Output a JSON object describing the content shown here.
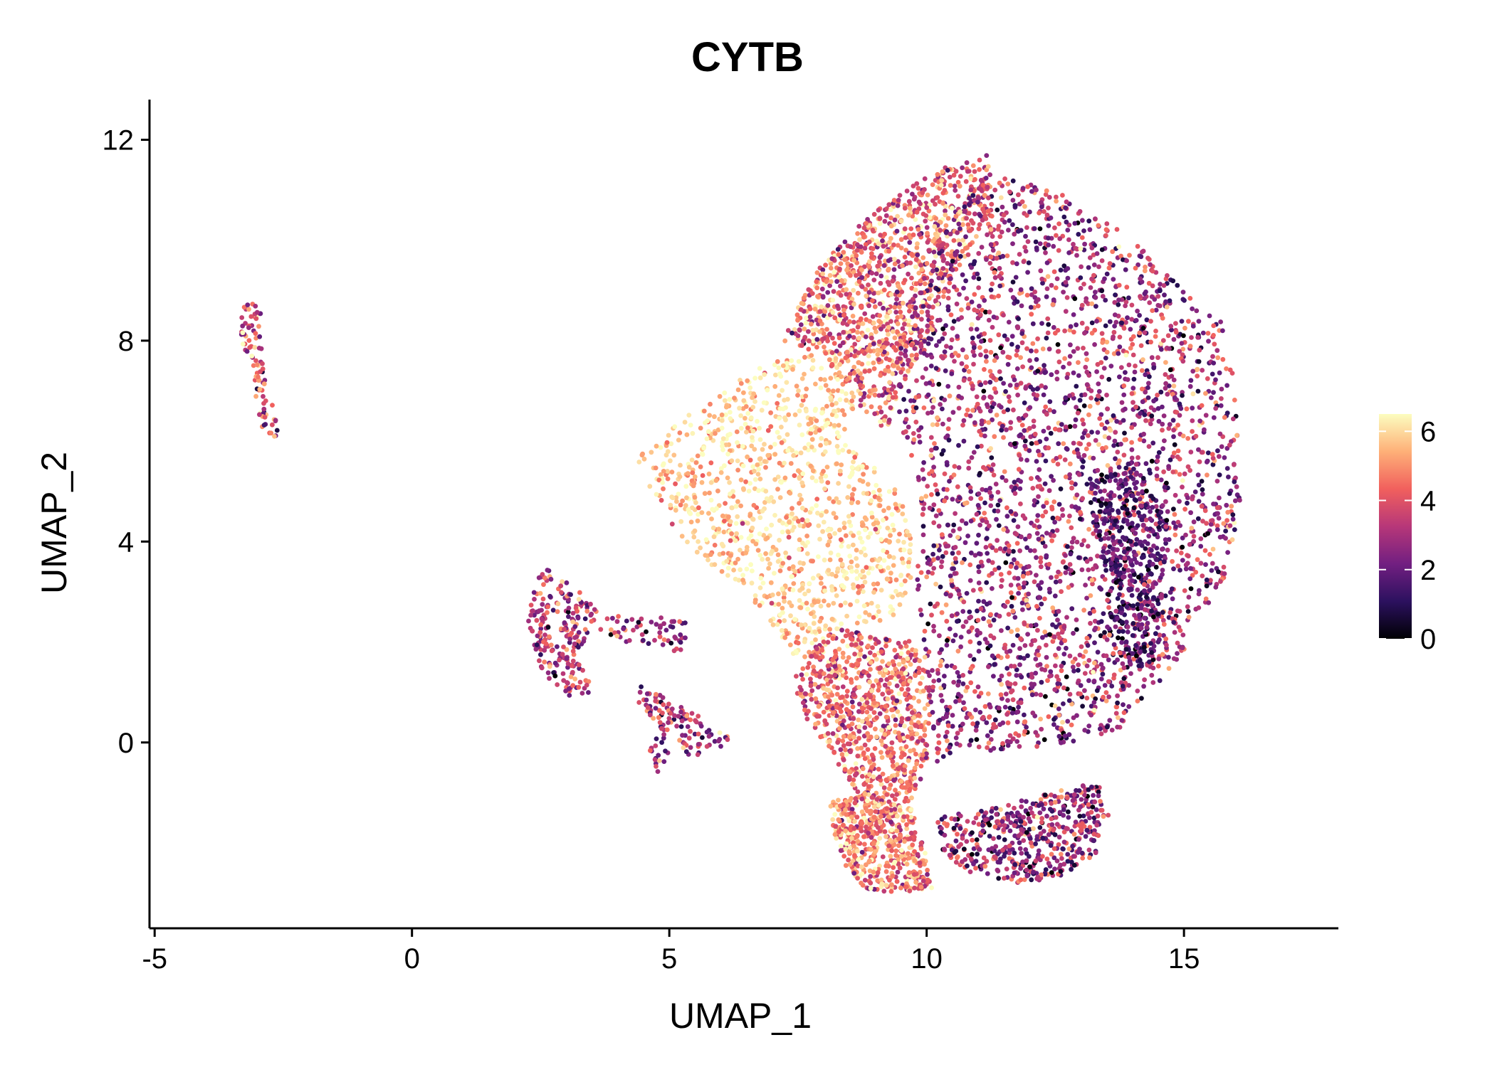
{
  "chart_data": {
    "type": "scatter",
    "title": "CYTB",
    "xlabel": "UMAP_1",
    "ylabel": "UMAP_2",
    "xlim": [
      -5.1,
      18
    ],
    "ylim": [
      -3.7,
      12.8
    ],
    "x_ticks": [
      -5,
      0,
      5,
      10,
      15
    ],
    "x_tick_labels": [
      "-5",
      "0",
      "5",
      "10",
      "15"
    ],
    "y_ticks": [
      0,
      4,
      8,
      12
    ],
    "y_tick_labels": [
      "0",
      "4",
      "8",
      "12"
    ],
    "grid": false,
    "legend": {
      "position": "right",
      "type": "colorbar",
      "min": 0,
      "max": 6.5,
      "ticks": [
        0,
        2,
        4,
        6
      ],
      "tick_labels": [
        "0",
        "2",
        "4",
        "6"
      ],
      "palette": [
        "#000004",
        "#2c115f",
        "#721f81",
        "#b73779",
        "#f1605d",
        "#feb078",
        "#fcfdbf"
      ]
    },
    "clusters": [
      {
        "name": "",
        "shape": "polygon",
        "poly": [
          [
            -3.35,
            8.7
          ],
          [
            -2.95,
            8.8
          ],
          [
            -2.9,
            7.6
          ],
          [
            -2.65,
            6.6
          ],
          [
            -2.6,
            6.05
          ],
          [
            -2.9,
            6.2
          ],
          [
            -3.1,
            7.2
          ],
          [
            -3.35,
            7.9
          ]
        ],
        "n": 90,
        "values": {
          "mean": 4.0,
          "sd": 1.5
        }
      },
      {
        "name": "",
        "shape": "polygon",
        "poly": [
          [
            2.2,
            2.9
          ],
          [
            2.6,
            3.5
          ],
          [
            3.3,
            3.0
          ],
          [
            3.6,
            2.6
          ],
          [
            3.3,
            1.8
          ],
          [
            3.5,
            1.0
          ],
          [
            3.1,
            0.9
          ],
          [
            2.6,
            1.3
          ],
          [
            2.3,
            2.0
          ]
        ],
        "n": 220,
        "values": {
          "mean": 3.3,
          "sd": 1.3
        }
      },
      {
        "name": "",
        "shape": "polygon",
        "poly": [
          [
            3.6,
            2.6
          ],
          [
            4.5,
            2.5
          ],
          [
            5.4,
            2.5
          ],
          [
            5.3,
            1.8
          ],
          [
            4.4,
            1.9
          ],
          [
            3.6,
            2.2
          ]
        ],
        "n": 60,
        "values": {
          "mean": 2.8,
          "sd": 1.3
        }
      },
      {
        "name": "",
        "shape": "polygon",
        "poly": [
          [
            4.4,
            1.2
          ],
          [
            5.3,
            0.7
          ],
          [
            6.2,
            0.1
          ],
          [
            6.0,
            -0.2
          ],
          [
            5.1,
            -0.3
          ],
          [
            4.8,
            -0.6
          ],
          [
            4.5,
            -0.4
          ],
          [
            4.8,
            0.3
          ],
          [
            4.3,
            0.8
          ]
        ],
        "n": 120,
        "values": {
          "mean": 3.0,
          "sd": 1.3
        }
      },
      {
        "name": "",
        "shape": "polygon",
        "poly": [
          [
            4.3,
            5.6
          ],
          [
            5.8,
            6.9
          ],
          [
            7.0,
            7.6
          ],
          [
            8.2,
            7.8
          ],
          [
            8.7,
            7.0
          ],
          [
            8.4,
            6.0
          ],
          [
            9.5,
            5.0
          ],
          [
            9.8,
            3.5
          ],
          [
            9.4,
            2.5
          ],
          [
            8.2,
            2.2
          ],
          [
            7.4,
            1.7
          ],
          [
            6.8,
            2.6
          ],
          [
            5.2,
            4.1
          ]
        ],
        "n": 1100,
        "values": {
          "mean": 5.8,
          "sd": 0.7
        }
      },
      {
        "name": "",
        "shape": "polygon",
        "poly": [
          [
            7.2,
            8.0
          ],
          [
            7.9,
            9.5
          ],
          [
            8.9,
            10.5
          ],
          [
            10.2,
            11.4
          ],
          [
            11.2,
            11.7
          ],
          [
            11.3,
            10.6
          ],
          [
            10.7,
            9.6
          ],
          [
            10.1,
            8.3
          ],
          [
            9.6,
            7.2
          ],
          [
            9.2,
            6.2
          ],
          [
            8.6,
            6.8
          ],
          [
            8.0,
            7.7
          ]
        ],
        "n": 1100,
        "values": {
          "mean": 4.4,
          "sd": 1.2
        }
      },
      {
        "name": "",
        "shape": "polygon",
        "poly": [
          [
            7.3,
            1.5
          ],
          [
            8.3,
            2.3
          ],
          [
            9.2,
            2.1
          ],
          [
            9.8,
            2.0
          ],
          [
            10.1,
            1.0
          ],
          [
            10.0,
            -0.6
          ],
          [
            9.7,
            -1.2
          ],
          [
            8.9,
            -1.5
          ],
          [
            8.6,
            -0.9
          ],
          [
            7.7,
            0.4
          ]
        ],
        "n": 800,
        "values": {
          "mean": 4.4,
          "sd": 1.0
        }
      },
      {
        "name": "",
        "shape": "polygon",
        "poly": [
          [
            8.1,
            -1.2
          ],
          [
            8.8,
            -1.0
          ],
          [
            9.7,
            -1.3
          ],
          [
            10.0,
            -2.3
          ],
          [
            10.1,
            -2.9
          ],
          [
            9.4,
            -3.0
          ],
          [
            8.8,
            -2.9
          ],
          [
            8.3,
            -2.3
          ]
        ],
        "n": 500,
        "values": {
          "mean": 4.8,
          "sd": 1.1
        }
      },
      {
        "name": "",
        "shape": "polygon",
        "poly": [
          [
            10.2,
            -1.5
          ],
          [
            11.3,
            -1.3
          ],
          [
            12.4,
            -1.0
          ],
          [
            13.3,
            -0.8
          ],
          [
            13.6,
            -1.3
          ],
          [
            13.3,
            -2.2
          ],
          [
            12.6,
            -2.7
          ],
          [
            11.8,
            -2.8
          ],
          [
            11.0,
            -2.7
          ],
          [
            10.3,
            -2.2
          ]
        ],
        "n": 500,
        "values": {
          "mean": 2.6,
          "sd": 1.4
        }
      },
      {
        "name": "",
        "shape": "polygon",
        "poly": [
          [
            9.4,
            8.0
          ],
          [
            10.3,
            10.0
          ],
          [
            11.0,
            11.3
          ],
          [
            11.8,
            11.2
          ],
          [
            12.9,
            10.8
          ],
          [
            14.0,
            10.0
          ],
          [
            15.0,
            9.0
          ],
          [
            15.8,
            8.3
          ],
          [
            16.0,
            7.0
          ],
          [
            16.2,
            5.8
          ],
          [
            16.0,
            3.8
          ],
          [
            15.5,
            2.6
          ],
          [
            14.8,
            1.5
          ],
          [
            14.2,
            0.9
          ],
          [
            13.8,
            0.3
          ],
          [
            13.0,
            0.0
          ],
          [
            12.0,
            -0.1
          ],
          [
            10.8,
            -0.2
          ],
          [
            10.2,
            -0.4
          ],
          [
            10.0,
            1.2
          ],
          [
            9.8,
            3.0
          ],
          [
            9.9,
            4.7
          ],
          [
            9.6,
            6.0
          ],
          [
            9.3,
            7.0
          ]
        ],
        "n": 2900,
        "values": {
          "mean": 2.9,
          "sd": 1.3
        }
      },
      {
        "name": "",
        "shape": "polygon",
        "poly": [
          [
            13.1,
            5.2
          ],
          [
            14.0,
            5.6
          ],
          [
            14.7,
            4.6
          ],
          [
            14.6,
            3.0
          ],
          [
            14.5,
            1.6
          ],
          [
            14.0,
            1.4
          ],
          [
            13.6,
            2.4
          ],
          [
            13.3,
            4.0
          ]
        ],
        "n": 450,
        "values": {
          "mean": 1.6,
          "sd": 0.9
        }
      }
    ]
  }
}
